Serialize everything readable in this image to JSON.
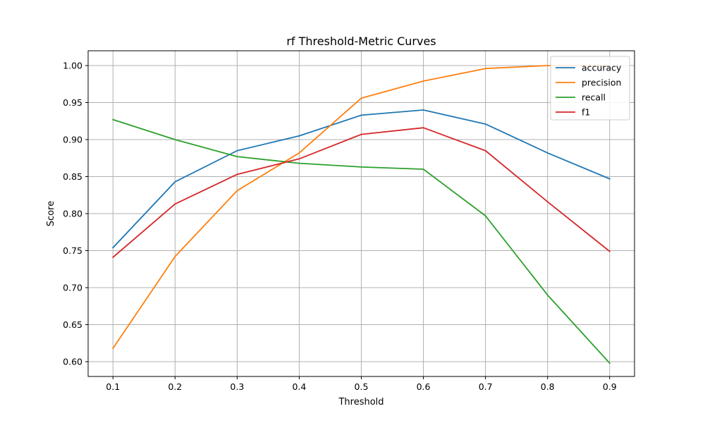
{
  "chart_data": {
    "type": "line",
    "title": "rf Threshold-Metric Curves",
    "xlabel": "Threshold",
    "ylabel": "Score",
    "x": [
      0.1,
      0.2,
      0.3,
      0.4,
      0.5,
      0.6,
      0.7,
      0.8,
      0.9
    ],
    "xticks": [
      "0.1",
      "0.2",
      "0.3",
      "0.4",
      "0.5",
      "0.6",
      "0.7",
      "0.8",
      "0.9"
    ],
    "yticks": [
      "0.60",
      "0.65",
      "0.70",
      "0.75",
      "0.80",
      "0.85",
      "0.90",
      "0.95",
      "1.00"
    ],
    "xlim": [
      0.06,
      0.94
    ],
    "ylim": [
      0.58,
      1.02
    ],
    "grid": true,
    "legend_position": "top-right",
    "series": [
      {
        "name": "accuracy",
        "color": "#1f77b4",
        "values": [
          0.754,
          0.843,
          0.885,
          0.905,
          0.933,
          0.94,
          0.921,
          0.882,
          0.847
        ]
      },
      {
        "name": "precision",
        "color": "#ff7f0e",
        "values": [
          0.618,
          0.742,
          0.831,
          0.882,
          0.956,
          0.979,
          0.996,
          1.0,
          1.0
        ]
      },
      {
        "name": "recall",
        "color": "#2ca02c",
        "values": [
          0.927,
          0.9,
          0.877,
          0.868,
          0.863,
          0.86,
          0.797,
          0.69,
          0.598
        ]
      },
      {
        "name": "f1",
        "color": "#d62728",
        "values": [
          0.741,
          0.813,
          0.853,
          0.874,
          0.907,
          0.916,
          0.885,
          0.816,
          0.749
        ]
      }
    ]
  }
}
